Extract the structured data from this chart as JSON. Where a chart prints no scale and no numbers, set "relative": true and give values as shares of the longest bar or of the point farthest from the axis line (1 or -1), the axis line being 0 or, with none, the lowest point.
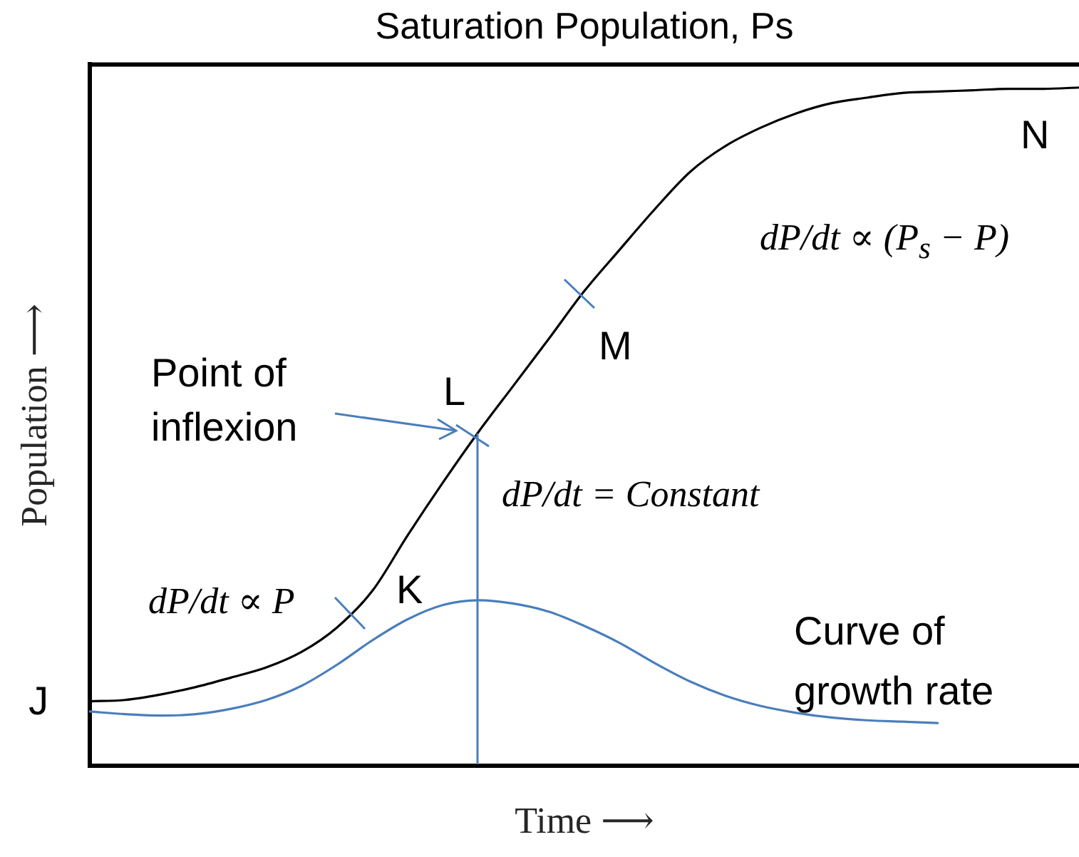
{
  "chart_data": {
    "type": "line",
    "title": "Saturation Population, Ps",
    "xlabel": "Time ⟶",
    "ylabel": "Population ⟶",
    "relative": true,
    "categories": [
      null,
      null,
      null,
      null,
      null,
      null,
      null,
      null,
      null,
      null,
      null,
      null,
      null,
      null,
      null,
      null,
      null,
      null,
      null,
      null,
      null,
      null,
      null,
      null,
      null,
      null,
      null,
      null,
      null
    ],
    "series": [
      {
        "color": "#000000",
        "values": [
          0.095,
          0.097,
          0.105,
          0.116,
          0.13,
          0.145,
          0.168,
          0.204,
          0.258,
          0.34,
          0.418,
          0.492,
          0.561,
          0.63,
          0.7,
          0.761,
          0.821,
          0.876,
          0.914,
          0.941,
          0.962,
          0.977,
          0.985,
          0.992,
          0.994,
          0.996,
          0.998,
          0.998,
          1
        ]
      },
      {
        "name": "Curve of growth rate",
        "color": "#4a7ebb",
        "values": [
          0.08,
          0.076,
          0.074,
          0.076,
          0.084,
          0.097,
          0.118,
          0.149,
          0.185,
          0.216,
          0.237,
          0.244,
          0.239,
          0.227,
          0.206,
          0.181,
          0.151,
          0.124,
          0.103,
          0.088,
          0.078,
          0.071,
          0.067,
          0.065,
          0.063,
          null,
          null,
          null,
          null
        ]
      }
    ],
    "annotations": [
      "J",
      "K",
      "L",
      "M",
      "N",
      "Point of inflexion",
      "dP/dt ∝ P",
      "dP/dt = Constant",
      "dP/dt ∝ (P$_{s}$ − P)"
    ]
  }
}
